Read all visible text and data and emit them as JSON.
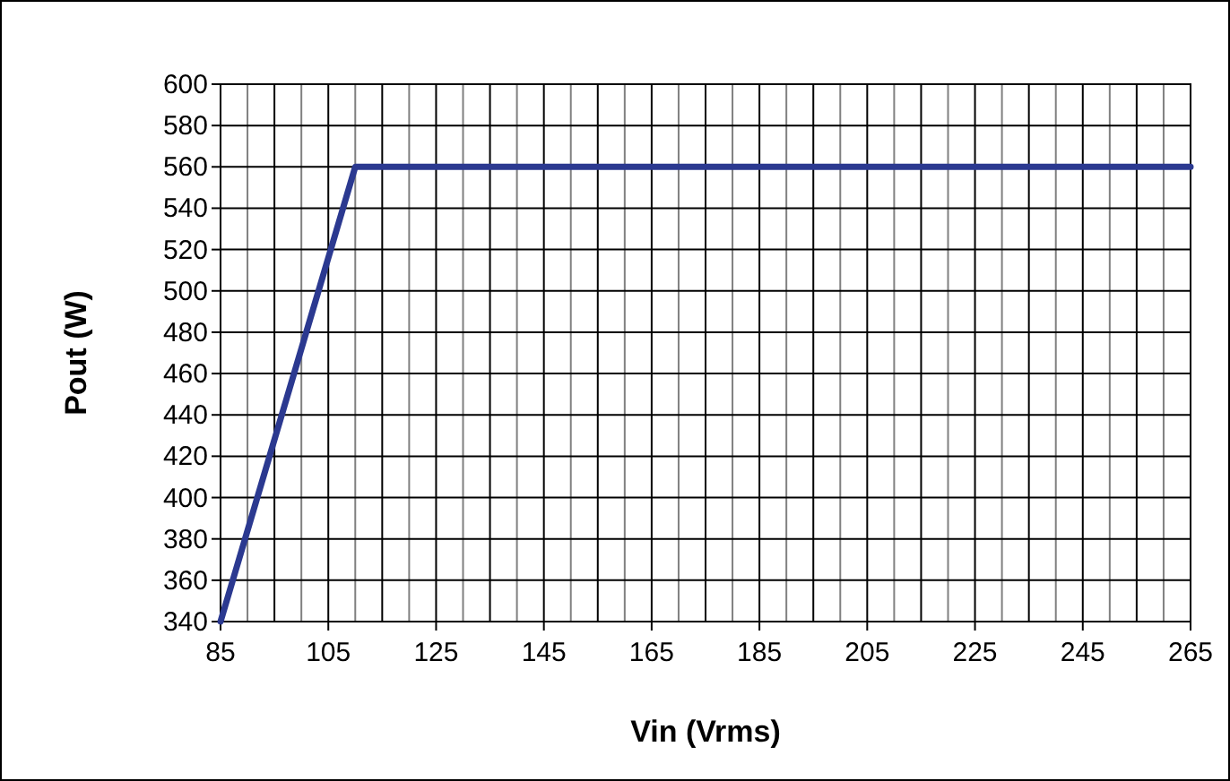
{
  "chart_data": {
    "type": "line",
    "xlabel": "Vin (Vrms)",
    "ylabel": "Pout (W)",
    "x": [
      85,
      110,
      265
    ],
    "series": [
      {
        "color": "#2b3990",
        "values": [
          340,
          560,
          560
        ]
      }
    ],
    "xlim": [
      85,
      265
    ],
    "ylim": [
      340,
      600
    ],
    "xticks": [
      85,
      {
        "value": 90,
        "label": null
      },
      {
        "value": 95,
        "label": null
      },
      {
        "value": 100,
        "label": null
      },
      105,
      {
        "value": 110,
        "label": null
      },
      {
        "value": 115,
        "label": null
      },
      {
        "value": 120,
        "label": null
      },
      125,
      {
        "value": 130,
        "label": null
      },
      {
        "value": 135,
        "label": null
      },
      {
        "value": 140,
        "label": null
      },
      145,
      {
        "value": 150,
        "label": null
      },
      {
        "value": 155,
        "label": null
      },
      {
        "value": 160,
        "label": null
      },
      165,
      {
        "value": 170,
        "label": null
      },
      {
        "value": 175,
        "label": null
      },
      {
        "value": 180,
        "label": null
      },
      185,
      {
        "value": 190,
        "label": null
      },
      {
        "value": 195,
        "label": null
      },
      {
        "value": 200,
        "label": null
      },
      205,
      {
        "value": 210,
        "label": null
      },
      {
        "value": 215,
        "label": null
      },
      {
        "value": 220,
        "label": null
      },
      225,
      {
        "value": 230,
        "label": null
      },
      {
        "value": 235,
        "label": null
      },
      {
        "value": 240,
        "label": null
      },
      245,
      {
        "value": 250,
        "label": null
      },
      {
        "value": 255,
        "label": null
      },
      {
        "value": 260,
        "label": null
      },
      265
    ],
    "yticks": [
      340,
      360,
      380,
      400,
      420,
      440,
      460,
      480,
      500,
      520,
      540,
      560,
      580,
      600
    ],
    "grid": true,
    "marker": "none",
    "line_style": "solid"
  }
}
